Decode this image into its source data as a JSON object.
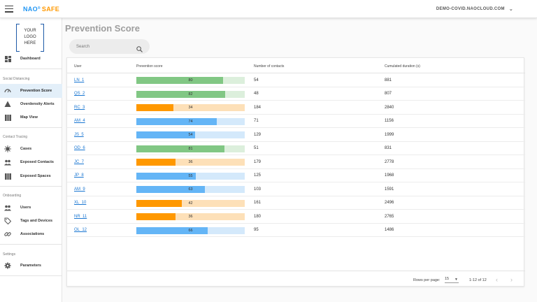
{
  "header": {
    "brand_nao": "NAO",
    "brand_reg": "®",
    "brand_safe": "SAFE",
    "account": "DEMO-COVID.NAOCLOUD.COM"
  },
  "sidebar": {
    "logo_text": "YOUR LOGO HERE",
    "dashboard": "Dashboard",
    "sections": {
      "social_distancing": "Social Distancing",
      "contact_tracing": "Contact Tracing",
      "onboarding": "Onboarding",
      "settings": "Settings"
    },
    "items": {
      "prevention_score": "Prevention Score",
      "overdensity_alerts": "Overdensity Alerts",
      "map_view": "Map View",
      "cases": "Cases",
      "exposed_contacts": "Exposed Contacts",
      "exposed_spaces": "Exposed Spaces",
      "users": "Users",
      "tags_and_devices": "Tags and Devices",
      "associations": "Associations",
      "parameters": "Parameters"
    }
  },
  "main": {
    "title": "Prevention Score",
    "search_placeholder": "Search"
  },
  "table": {
    "columns": [
      "User",
      "Prevention score",
      "Number of contacts",
      "Cumulated duration (s)"
    ],
    "rows": [
      {
        "user": "LN_1",
        "score": 80,
        "level": "green",
        "contacts": "54",
        "duration": "881"
      },
      {
        "user": "QS_2",
        "score": 82,
        "level": "green",
        "contacts": "48",
        "duration": "807"
      },
      {
        "user": "RC_3",
        "score": 34,
        "level": "orange",
        "contacts": "184",
        "duration": "2840"
      },
      {
        "user": "AM_4",
        "score": 74,
        "level": "blue",
        "contacts": "71",
        "duration": "1156"
      },
      {
        "user": "JS_5",
        "score": 54,
        "level": "blue",
        "contacts": "129",
        "duration": "1999"
      },
      {
        "user": "OD_6",
        "score": 81,
        "level": "green",
        "contacts": "51",
        "duration": "831"
      },
      {
        "user": "JC_7",
        "score": 36,
        "level": "orange",
        "contacts": "179",
        "duration": "2778"
      },
      {
        "user": "JP_8",
        "score": 55,
        "level": "blue",
        "contacts": "125",
        "duration": "1968"
      },
      {
        "user": "AM_9",
        "score": 63,
        "level": "blue",
        "contacts": "103",
        "duration": "1591"
      },
      {
        "user": "XL_10",
        "score": 42,
        "level": "orange",
        "contacts": "161",
        "duration": "2496"
      },
      {
        "user": "NR_11",
        "score": 36,
        "level": "orange",
        "contacts": "180",
        "duration": "2765"
      },
      {
        "user": "OL_12",
        "score": 66,
        "level": "blue",
        "contacts": "95",
        "duration": "1486"
      }
    ]
  },
  "score_colors": {
    "green": {
      "fill": "#81c784",
      "track": "#dcefdc"
    },
    "blue": {
      "fill": "#64b5f6",
      "track": "#d4e9fb"
    },
    "orange": {
      "fill": "#ff9800",
      "track": "#fde0b8"
    }
  },
  "pagination": {
    "rows_per_page_label": "Rows per page:",
    "rows_per_page": "15",
    "range": "1-12 of 12",
    "prev_icon": "chevron-left-icon",
    "next_icon": "chevron-right-icon"
  }
}
